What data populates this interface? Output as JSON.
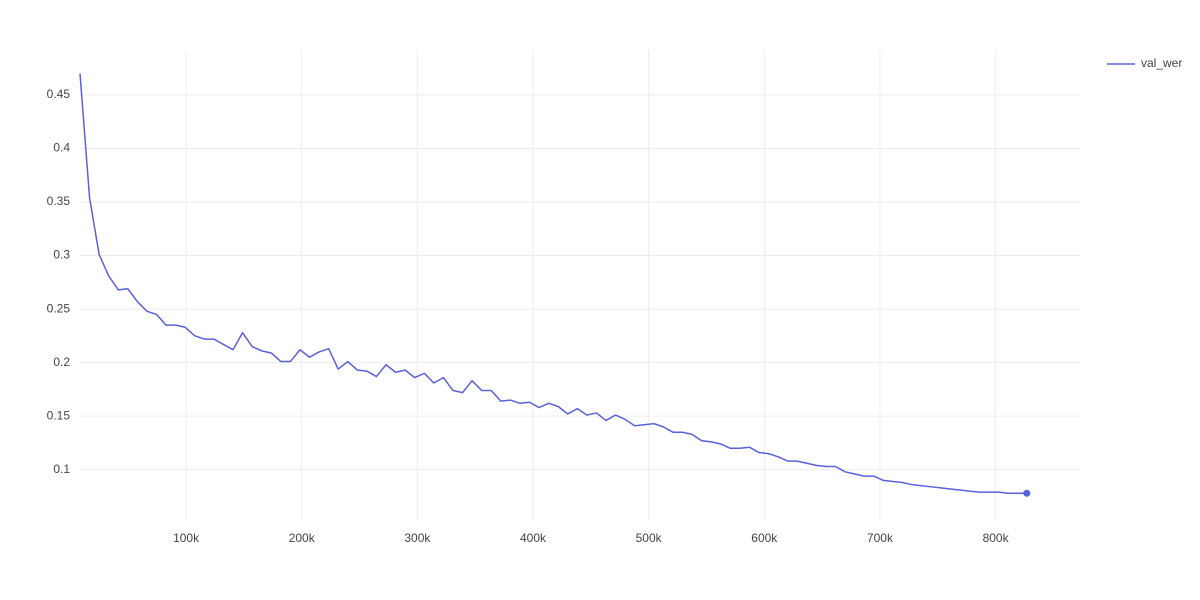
{
  "chart_data": {
    "type": "line",
    "x": [
      8270,
      16540,
      24810,
      33080,
      41350,
      49620,
      57890,
      66160,
      74430,
      82700,
      90970,
      99240,
      107510,
      115780,
      124050,
      132320,
      140590,
      148860,
      157130,
      165400,
      173670,
      181940,
      190210,
      198480,
      206750,
      215020,
      223290,
      231560,
      239830,
      248100,
      256370,
      264640,
      272910,
      281180,
      289450,
      297720,
      305990,
      314260,
      322530,
      330800,
      339070,
      347340,
      355610,
      363880,
      372150,
      380420,
      388690,
      396960,
      405230,
      413500,
      421770,
      430040,
      438310,
      446580,
      454850,
      463120,
      471390,
      479660,
      487930,
      496200,
      504470,
      512740,
      521010,
      529280,
      537550,
      545820,
      554090,
      562360,
      570630,
      578900,
      587170,
      595440,
      603710,
      611980,
      620250,
      628520,
      636790,
      645060,
      653330,
      661600,
      669870,
      678140,
      686410,
      694680,
      702950,
      711220,
      719490,
      727760,
      736030,
      744300,
      752570,
      760840,
      769110,
      777380,
      785650,
      793920,
      802190,
      810460,
      818730,
      827000
    ],
    "series": [
      {
        "name": "val_wer",
        "color": "#5a62d9",
        "values": [
          0.47,
          0.354,
          0.301,
          0.281,
          0.268,
          0.269,
          0.257,
          0.248,
          0.245,
          0.235,
          0.235,
          0.233,
          0.225,
          0.222,
          0.222,
          0.217,
          0.212,
          0.228,
          0.215,
          0.211,
          0.209,
          0.201,
          0.201,
          0.212,
          0.205,
          0.21,
          0.213,
          0.194,
          0.201,
          0.193,
          0.192,
          0.187,
          0.198,
          0.191,
          0.193,
          0.186,
          0.19,
          0.181,
          0.186,
          0.174,
          0.172,
          0.183,
          0.174,
          0.174,
          0.164,
          0.165,
          0.162,
          0.163,
          0.158,
          0.162,
          0.159,
          0.152,
          0.157,
          0.151,
          0.153,
          0.146,
          0.151,
          0.147,
          0.141,
          0.142,
          0.143,
          0.14,
          0.135,
          0.135,
          0.133,
          0.127,
          0.126,
          0.124,
          0.12,
          0.12,
          0.121,
          0.116,
          0.115,
          0.112,
          0.108,
          0.108,
          0.106,
          0.104,
          0.103,
          0.103,
          0.098,
          0.096,
          0.094,
          0.094,
          0.09,
          0.089,
          0.088,
          0.086,
          0.085,
          0.084,
          0.083,
          0.082,
          0.081,
          0.08,
          0.079,
          0.079,
          0.079,
          0.078,
          0.078,
          0.078
        ]
      }
    ],
    "xlim": [
      8270,
      873000
    ],
    "ylim": [
      0.053,
      0.492
    ],
    "xticks": [
      {
        "value": 100000,
        "label": "100k"
      },
      {
        "value": 200000,
        "label": "200k"
      },
      {
        "value": 300000,
        "label": "300k"
      },
      {
        "value": 400000,
        "label": "400k"
      },
      {
        "value": 500000,
        "label": "500k"
      },
      {
        "value": 600000,
        "label": "600k"
      },
      {
        "value": 700000,
        "label": "700k"
      },
      {
        "value": 800000,
        "label": "800k"
      }
    ],
    "yticks": [
      0.1,
      0.15,
      0.2,
      0.25,
      0.3,
      0.35,
      0.4,
      0.45
    ],
    "grid": true,
    "legend": "top-right"
  }
}
